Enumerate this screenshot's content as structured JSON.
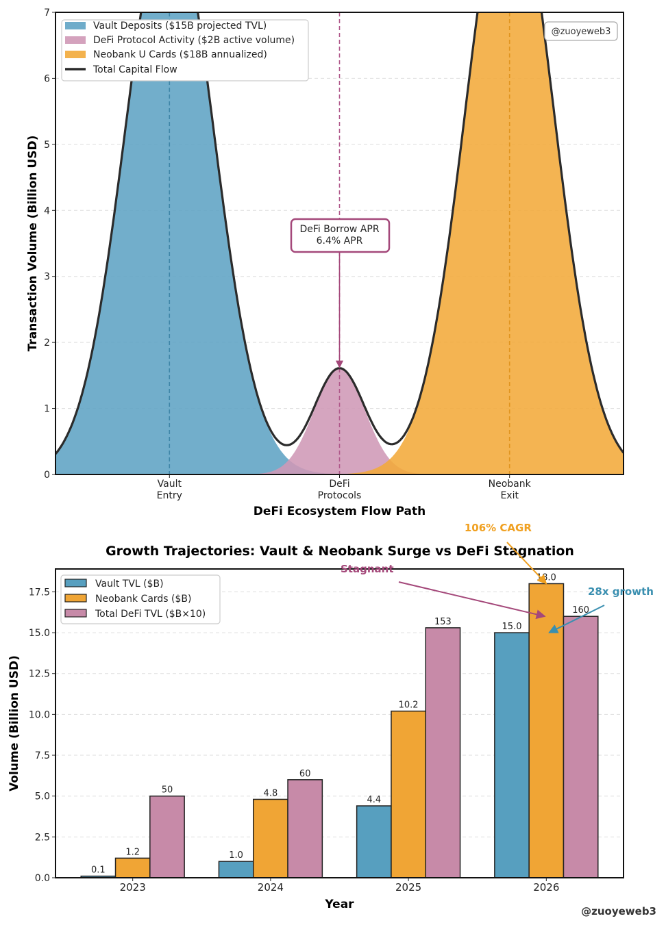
{
  "chart_data": [
    {
      "type": "area",
      "title": "",
      "xlabel": "DeFi Ecosystem Flow Path",
      "ylabel": "Transaction Volume (Billion USD)",
      "ylim": [
        0,
        7
      ],
      "xlim": [
        -0.67,
        2.67
      ],
      "yticks": [
        0,
        1,
        2,
        3,
        4,
        5,
        6,
        7
      ],
      "grid": true,
      "categories": [
        [
          "Vault",
          "Entry"
        ],
        [
          "DeFi",
          "Protocols"
        ],
        [
          "Neobank",
          "Exit"
        ]
      ],
      "series": [
        {
          "name": "Vault Deposits ($15B projected TVL)",
          "center": 0,
          "peak": 8.6,
          "sigma": 0.26,
          "color": "#5fa3c4"
        },
        {
          "name": "DeFi Protocol Activity ($2B active volume)",
          "center": 1,
          "peak": 1.6,
          "sigma": 0.15,
          "color": "#cf98b6"
        },
        {
          "name": "Neobank U Cards ($18B annualized)",
          "center": 2,
          "peak": 9.1,
          "sigma": 0.26,
          "color": "#f2aa3a"
        }
      ],
      "total_line": {
        "name": "Total Capital Flow",
        "color": "#2b2b2b"
      },
      "legend_position": "top-left",
      "annotation": {
        "lines": [
          "DeFi Borrow APR",
          "6.4% APR"
        ],
        "x": 1,
        "y": 3.6,
        "target_y": 1.6,
        "color": "#a4487a"
      },
      "watermark": "@zuoyeweb3"
    },
    {
      "type": "bar",
      "title": "Growth Trajectories: Vault & Neobank Surge vs DeFi Stagnation",
      "xlabel": "Year",
      "ylabel": "Volume (Billion USD)",
      "categories": [
        "2023",
        "2024",
        "2025",
        "2026"
      ],
      "ylim": [
        0,
        18.9
      ],
      "xlim": [
        -0.56,
        3.56
      ],
      "yticks": [
        "0.0",
        "2.5",
        "5.0",
        "7.5",
        "10.0",
        "12.5",
        "15.0",
        "17.5"
      ],
      "grid": true,
      "legend_position": "top-left",
      "series": [
        {
          "name": "Vault TVL ($B)",
          "values": [
            0.1,
            1.0,
            4.4,
            15.0
          ],
          "labels": [
            "0.1",
            "1.0",
            "4.4",
            "15.0"
          ],
          "color": "#579fbf"
        },
        {
          "name": "Neobank Cards ($B)",
          "values": [
            1.2,
            4.8,
            10.2,
            18.0
          ],
          "labels": [
            "1.2",
            "4.8",
            "10.2",
            "18.0"
          ],
          "color": "#f0a535"
        },
        {
          "name": "Total DeFi TVL ($B×10)",
          "values": [
            5.0,
            6.0,
            15.3,
            16.0
          ],
          "labels": [
            "50",
            "60",
            "153",
            "160"
          ],
          "color": "#c78aa8"
        }
      ],
      "annotations": [
        {
          "text": "106% CAGR",
          "x": 2.65,
          "y": 21.2,
          "tx": 3.0,
          "ty": 18.0,
          "color": "#f0a020"
        },
        {
          "text": "Stagnant",
          "x": 1.7,
          "y": 18.7,
          "tx": 2.99,
          "ty": 16.0,
          "color": "#a4487a"
        },
        {
          "text": "28x growth",
          "x": 3.54,
          "y": 17.3,
          "tx": 3.02,
          "ty": 15.0,
          "color": "#3a8fb0"
        }
      ],
      "watermark": "@zuoyeweb3"
    }
  ]
}
